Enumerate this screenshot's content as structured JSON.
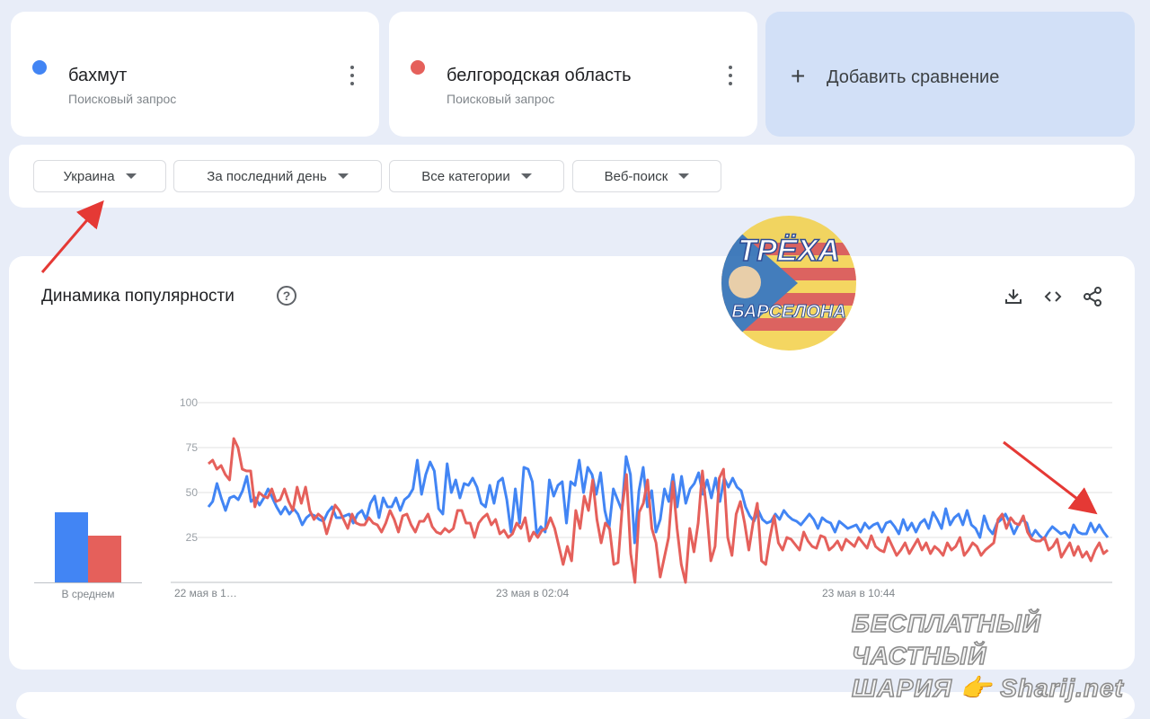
{
  "terms": [
    {
      "name": "бахмут",
      "subtitle": "Поисковый запрос",
      "color": "#4285f4"
    },
    {
      "name": "белгородская область",
      "subtitle": "Поисковый запрос",
      "color": "#e5605b"
    }
  ],
  "add_comparison": {
    "icon": "+",
    "label": "Добавить сравнение"
  },
  "filters": [
    {
      "label": "Украина"
    },
    {
      "label": "За последний день"
    },
    {
      "label": "Все категории"
    },
    {
      "label": "Веб-поиск"
    }
  ],
  "chart_section": {
    "title": "Динамика популярности",
    "help": "?",
    "tools": [
      "download-icon",
      "embed-icon",
      "share-icon"
    ]
  },
  "logo": {
    "top_text": "ТРЁХА",
    "bottom_text": "БАРСЕЛОНА"
  },
  "watermark": {
    "line1": "БЕСПЛАТНЫЙ ЧАСТНЫЙ",
    "line2": "ШАРИЯ 👉 Sharij.net"
  },
  "chart_data": {
    "type": "line",
    "ylim": [
      0,
      100
    ],
    "yticks": [
      25,
      50,
      75,
      100
    ],
    "xtick_labels": [
      "22 мая в 1…",
      "23 мая в 02:04",
      "23 мая в 10:44"
    ],
    "average": {
      "label": "В среднем",
      "values": [
        39,
        26
      ]
    },
    "series": [
      {
        "name": "бахмут",
        "color": "#4285f4",
        "values": [
          42,
          45,
          55,
          47,
          40,
          47,
          48,
          46,
          51,
          59,
          45,
          47,
          43,
          47,
          52,
          47,
          42,
          38,
          42,
          38,
          41,
          38,
          32,
          36,
          38,
          37,
          35,
          34,
          39,
          42,
          36,
          36,
          37,
          38,
          33,
          38,
          40,
          35,
          44,
          48,
          36,
          47,
          42,
          42,
          47,
          40,
          46,
          48,
          52,
          68,
          49,
          60,
          67,
          62,
          41,
          38,
          66,
          50,
          57,
          47,
          55,
          54,
          58,
          53,
          44,
          42,
          54,
          44,
          56,
          58,
          46,
          28,
          52,
          33,
          64,
          63,
          56,
          27,
          31,
          28,
          57,
          48,
          54,
          56,
          33,
          56,
          54,
          68,
          50,
          64,
          60,
          49,
          61,
          40,
          30,
          52,
          46,
          40,
          70,
          60,
          22,
          51,
          64,
          42,
          51,
          28,
          35,
          52,
          45,
          60,
          42,
          59,
          44,
          52,
          55,
          61,
          49,
          57,
          47,
          58,
          45,
          58,
          53,
          58,
          53,
          51,
          42,
          37,
          34,
          40,
          35,
          33,
          34,
          38,
          35,
          40,
          37,
          35,
          34,
          32,
          35,
          38,
          35,
          30,
          36,
          34,
          33,
          28,
          34,
          32,
          30,
          31,
          32,
          28,
          33,
          30,
          32,
          33,
          28,
          33,
          34,
          31,
          27,
          35,
          29,
          33,
          28,
          33,
          35,
          30,
          39,
          35,
          30,
          41,
          32,
          36,
          38,
          32,
          40,
          32,
          30,
          25,
          37,
          30,
          27,
          33,
          35,
          38,
          33,
          27,
          32,
          35,
          33,
          25,
          29,
          26,
          24,
          28,
          31,
          29,
          27,
          28,
          25,
          32,
          28,
          27,
          27,
          33,
          28,
          32,
          28,
          25
        ],
        "_unused": true
      },
      {
        "name": "белгородская область",
        "color": "#e5605b",
        "values": [
          66,
          68,
          63,
          65,
          60,
          57,
          80,
          75,
          63,
          62,
          62,
          42,
          50,
          48,
          47,
          52,
          45,
          46,
          52,
          45,
          40,
          53,
          44,
          53,
          40,
          35,
          38,
          36,
          27,
          35,
          43,
          40,
          35,
          30,
          38,
          33,
          32,
          32,
          36,
          33,
          32,
          28,
          33,
          40,
          35,
          28,
          37,
          38,
          32,
          28,
          34,
          34,
          38,
          31,
          28,
          27,
          30,
          28,
          30,
          40,
          40,
          33,
          33,
          25,
          33,
          36,
          38,
          32,
          35,
          27,
          29,
          25,
          27,
          33,
          30,
          36,
          23,
          28,
          25,
          29,
          30,
          36,
          30,
          20,
          10,
          20,
          12,
          40,
          30,
          48,
          40,
          57,
          35,
          22,
          33,
          30,
          10,
          11,
          42,
          60,
          16,
          0,
          39,
          44,
          57,
          30,
          22,
          3,
          14,
          25,
          56,
          30,
          10,
          0,
          30,
          17,
          33,
          62,
          40,
          12,
          20,
          58,
          63,
          25,
          15,
          38,
          45,
          33,
          18,
          33,
          44,
          12,
          10,
          25,
          37,
          22,
          18,
          25,
          24,
          21,
          18,
          28,
          23,
          20,
          19,
          26,
          25,
          18,
          20,
          23,
          18,
          24,
          22,
          20,
          25,
          22,
          19,
          26,
          20,
          18,
          17,
          25,
          20,
          15,
          18,
          22,
          16,
          20,
          24,
          18,
          22,
          16,
          20,
          18,
          15,
          22,
          18,
          20,
          25,
          15,
          18,
          22,
          20,
          15,
          18,
          20,
          22,
          35,
          38,
          30,
          36,
          33,
          32,
          37,
          28,
          24,
          23,
          23,
          25,
          18,
          20,
          24,
          14,
          18,
          22,
          15,
          20,
          14,
          17,
          12,
          18,
          22,
          16,
          18
        ]
      }
    ]
  }
}
